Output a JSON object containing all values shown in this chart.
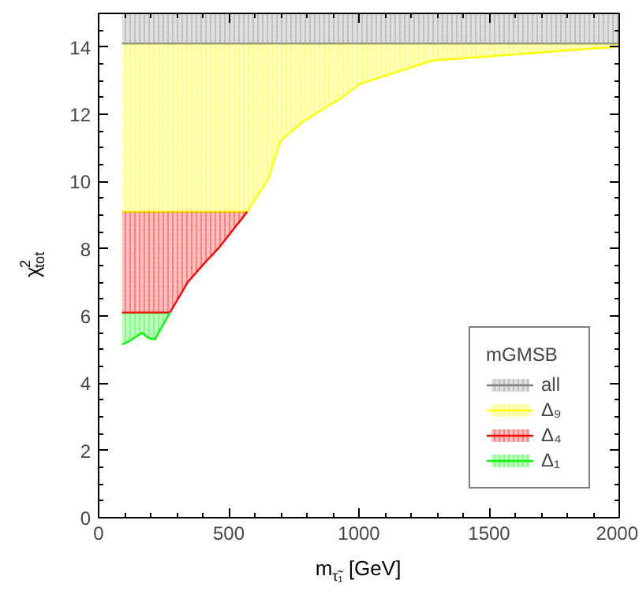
{
  "chart_data": {
    "type": "line",
    "xlabel": "m$_{τ̃₁}$ [GeV]",
    "ylabel": "χ$^{2}$$_{tot}$",
    "legend_title": "mGMSB",
    "legend": "bottom right",
    "grid": false,
    "xlim": [
      0,
      2000
    ],
    "xticks": [
      0,
      500,
      1000,
      1500,
      2000
    ],
    "ylim": [
      0,
      15
    ],
    "yticks": [
      0,
      2,
      4,
      6,
      8,
      10,
      12,
      14
    ],
    "series": [
      {
        "name": "all",
        "color": "#808080",
        "x": [
          90,
          2000
        ],
        "values": [
          14.1,
          14.1
        ],
        "lower": [
          14.1,
          14.1
        ],
        "upper": [
          15,
          15
        ]
      },
      {
        "name": "Δ₉",
        "color": "#ffff00",
        "x": [
          90,
          571,
          653,
          698,
          789,
          935,
          1003,
          1284,
          1984,
          2000
        ],
        "values": [
          9.1,
          9.1,
          10.1,
          11.2,
          11.8,
          12.5,
          12.9,
          13.6,
          14.0,
          14.05
        ],
        "lower": [
          9.1,
          9.1,
          10.1,
          11.2,
          11.8,
          12.5,
          12.9,
          13.6,
          14.0,
          14.05
        ],
        "upper": [
          14.1,
          14.1,
          14.1,
          14.1,
          14.1,
          14.1,
          14.1,
          14.1,
          14.1,
          14.1
        ]
      },
      {
        "name": "Δ₄",
        "color": "#ff0000",
        "x": [
          90,
          274,
          342,
          410,
          459,
          571
        ],
        "values": [
          6.1,
          6.1,
          7.0,
          7.6,
          8.0,
          9.1
        ],
        "lower": [
          6.1,
          6.1,
          7.0,
          7.6,
          8.0,
          9.1
        ],
        "upper": [
          9.1,
          9.1,
          9.1,
          9.1,
          9.1,
          9.1
        ]
      },
      {
        "name": "Δ₁",
        "color": "#00ff00",
        "x": [
          90,
          118,
          167,
          190,
          216,
          274
        ],
        "values": [
          5.15,
          5.25,
          5.5,
          5.35,
          5.3,
          6.1
        ],
        "lower": [
          5.15,
          5.25,
          5.5,
          5.35,
          5.3,
          6.1
        ],
        "upper": [
          6.1,
          6.1,
          6.1,
          6.1,
          6.1,
          6.1
        ]
      }
    ]
  }
}
